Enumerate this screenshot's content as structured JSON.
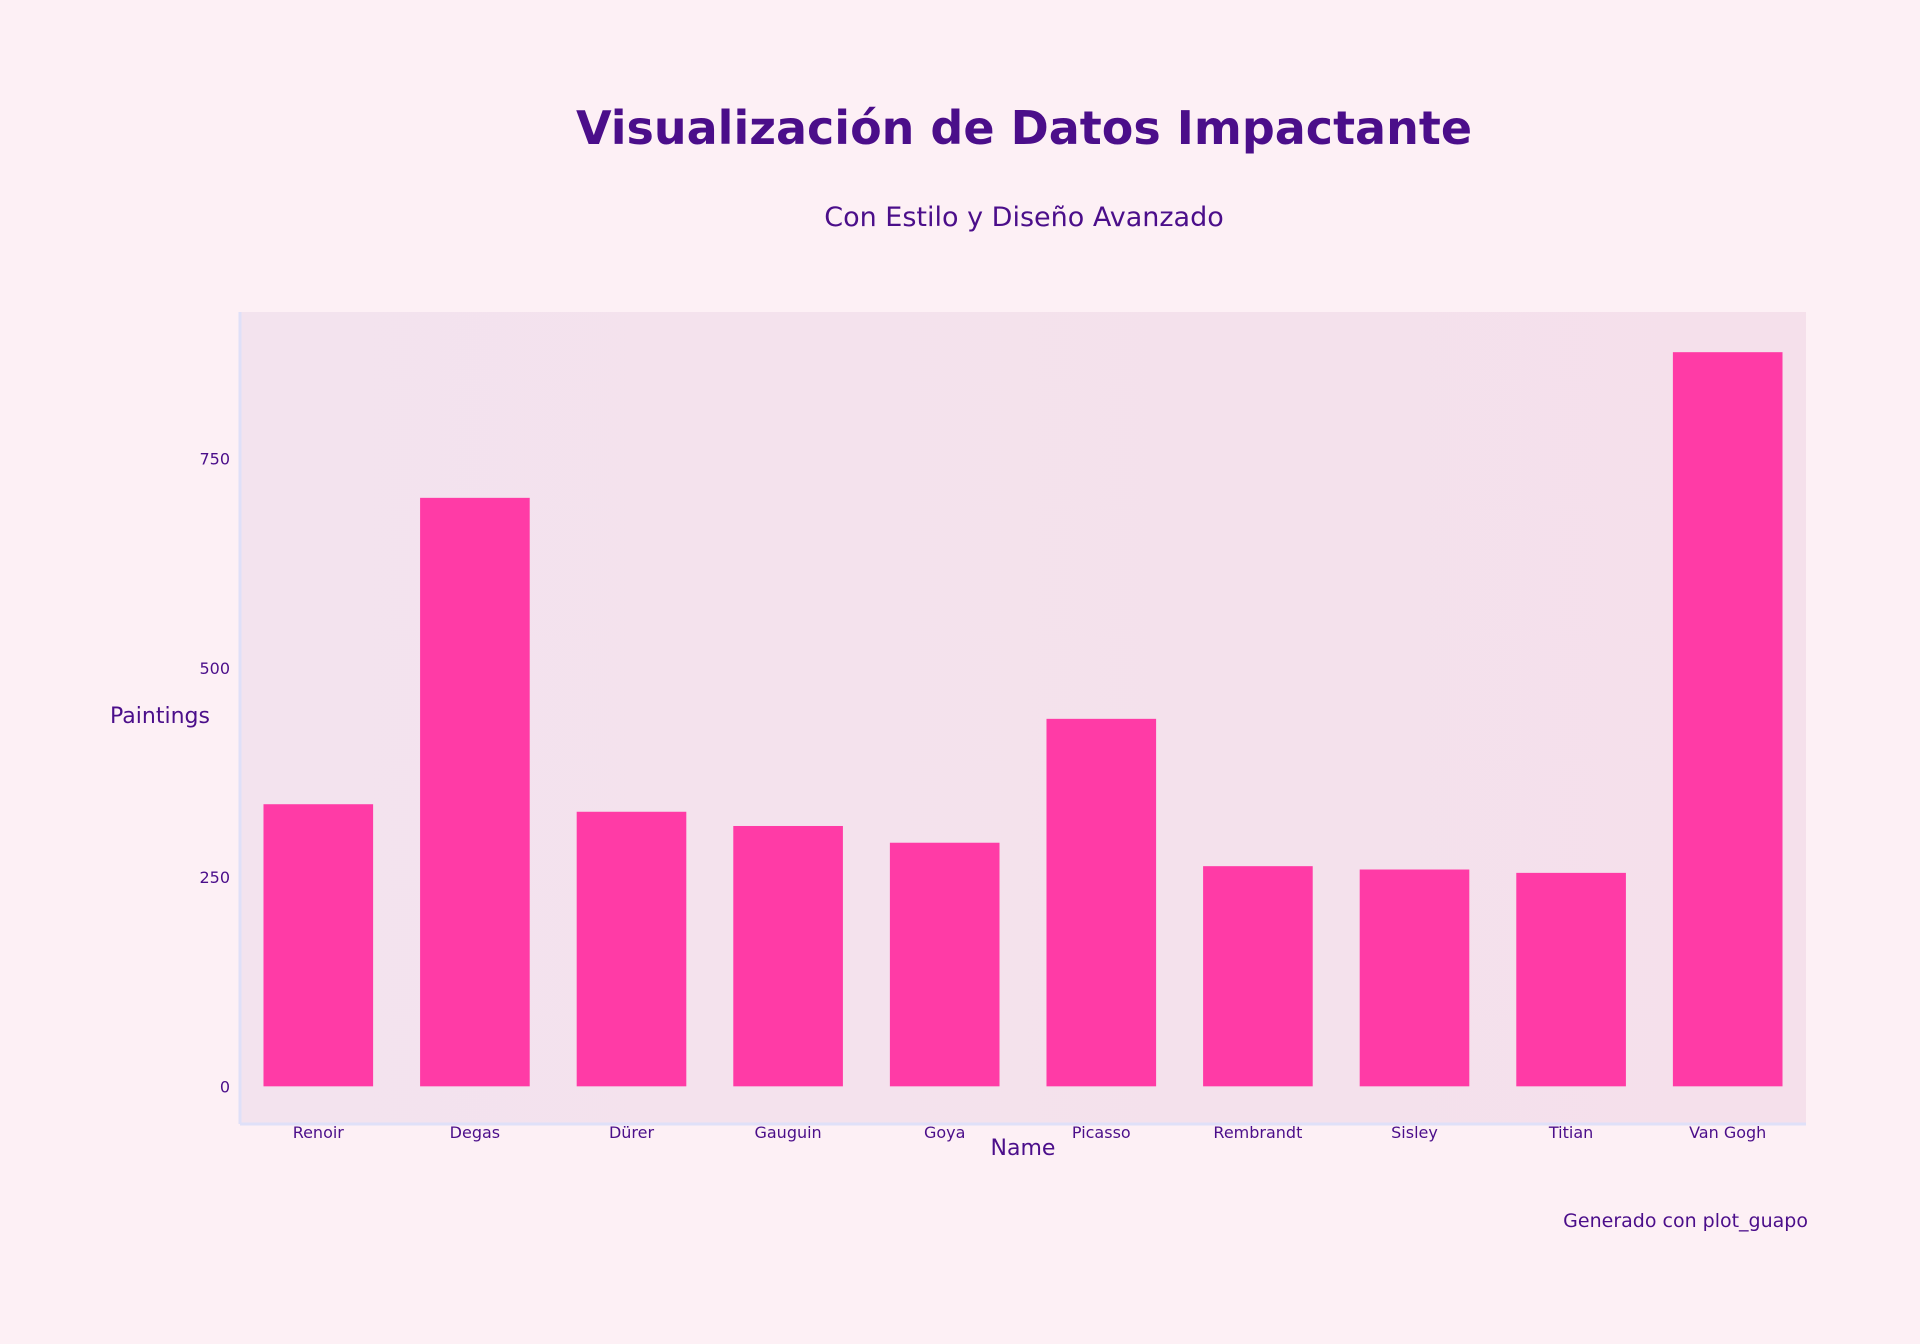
{
  "chart_data": {
    "type": "bar",
    "title": "Visualización de Datos Impactante",
    "subtitle": "Con Estilo y Diseño Avanzado",
    "xlabel": "Name",
    "ylabel": "Paintings",
    "categories": [
      "Renoir",
      "Degas",
      "Dürer",
      "Gauguin",
      "Goya",
      "Picasso",
      "Rembrandt",
      "Sisley",
      "Titian",
      "Van Gogh"
    ],
    "values": [
      337,
      703,
      328,
      311,
      291,
      439,
      263,
      259,
      255,
      877
    ],
    "ylim": [
      -45,
      925
    ],
    "yticks": [
      0,
      250,
      500,
      750
    ],
    "grid": false,
    "legend": "none",
    "footer": "Generado con plot_guapo",
    "colors": {
      "bar": "#ff3ba6",
      "plot_background": "#f5e1ec",
      "page_background": "#fdf0f5",
      "text": "#4b0e8a",
      "axis_line": "#dfe0f8"
    }
  }
}
